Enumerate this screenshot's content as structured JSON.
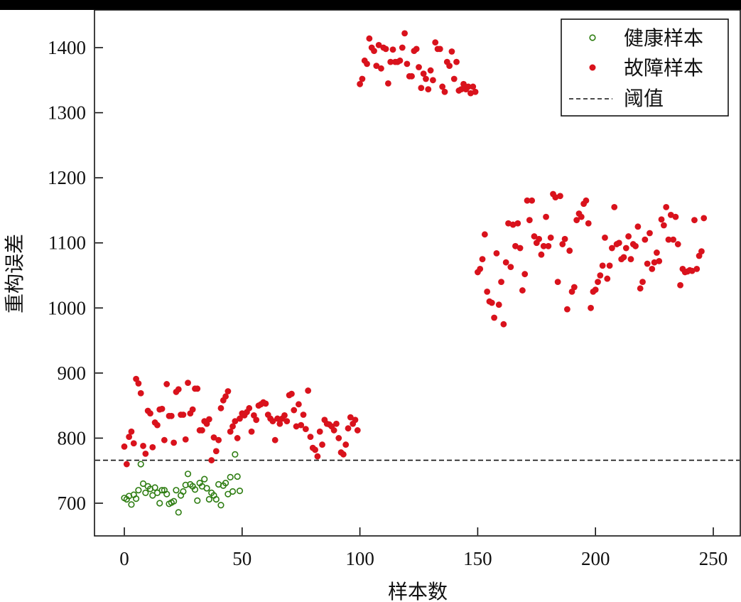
{
  "chart_data": {
    "type": "scatter",
    "title": "",
    "xlabel": "样本数",
    "ylabel": "重构误差",
    "xlim": [
      -12,
      262
    ],
    "ylim": [
      650,
      1450
    ],
    "xticks": [
      0,
      50,
      100,
      150,
      200,
      250
    ],
    "yticks": [
      700,
      800,
      900,
      1000,
      1100,
      1200,
      1300,
      1400
    ],
    "grid": false,
    "legend_position": "upper right",
    "threshold": 766,
    "series": [
      {
        "name": "健康样本",
        "marker": "open-circle",
        "color": "#2e7d12",
        "points": [
          [
            0,
            708
          ],
          [
            1,
            706
          ],
          [
            2,
            711
          ],
          [
            3,
            698
          ],
          [
            4,
            713
          ],
          [
            5,
            707
          ],
          [
            6,
            720
          ],
          [
            7,
            760
          ],
          [
            8,
            730
          ],
          [
            9,
            716
          ],
          [
            10,
            726
          ],
          [
            11,
            722
          ],
          [
            12,
            712
          ],
          [
            13,
            724
          ],
          [
            14,
            716
          ],
          [
            15,
            700
          ],
          [
            16,
            720
          ],
          [
            17,
            720
          ],
          [
            18,
            714
          ],
          [
            19,
            699
          ],
          [
            20,
            701
          ],
          [
            21,
            703
          ],
          [
            22,
            720
          ],
          [
            23,
            686
          ],
          [
            24,
            712
          ],
          [
            25,
            718
          ],
          [
            26,
            728
          ],
          [
            27,
            745
          ],
          [
            28,
            729
          ],
          [
            29,
            726
          ],
          [
            30,
            721
          ],
          [
            31,
            704
          ],
          [
            32,
            731
          ],
          [
            33,
            726
          ],
          [
            34,
            737
          ],
          [
            35,
            723
          ],
          [
            36,
            706
          ],
          [
            37,
            716
          ],
          [
            38,
            712
          ],
          [
            39,
            706
          ],
          [
            40,
            729
          ],
          [
            41,
            697
          ],
          [
            42,
            727
          ],
          [
            43,
            731
          ],
          [
            44,
            714
          ],
          [
            45,
            740
          ],
          [
            46,
            718
          ],
          [
            47,
            775
          ],
          [
            48,
            741
          ],
          [
            49,
            719
          ]
        ]
      },
      {
        "name": "故障样本",
        "marker": "filled-circle",
        "color": "#d9121c",
        "points": [
          [
            0,
            787
          ],
          [
            1,
            760
          ],
          [
            2,
            802
          ],
          [
            3,
            810
          ],
          [
            4,
            792
          ],
          [
            5,
            891
          ],
          [
            6,
            884
          ],
          [
            7,
            869
          ],
          [
            8,
            788
          ],
          [
            9,
            776
          ],
          [
            10,
            842
          ],
          [
            11,
            838
          ],
          [
            12,
            786
          ],
          [
            13,
            824
          ],
          [
            14,
            820
          ],
          [
            15,
            844
          ],
          [
            16,
            845
          ],
          [
            17,
            797
          ],
          [
            18,
            883
          ],
          [
            19,
            834
          ],
          [
            20,
            834
          ],
          [
            21,
            793
          ],
          [
            22,
            871
          ],
          [
            23,
            875
          ],
          [
            24,
            836
          ],
          [
            25,
            836
          ],
          [
            26,
            798
          ],
          [
            27,
            885
          ],
          [
            28,
            838
          ],
          [
            29,
            844
          ],
          [
            30,
            876
          ],
          [
            31,
            876
          ],
          [
            32,
            812
          ],
          [
            33,
            812
          ],
          [
            34,
            826
          ],
          [
            35,
            822
          ],
          [
            36,
            829
          ],
          [
            37,
            766
          ],
          [
            38,
            801
          ],
          [
            39,
            780
          ],
          [
            40,
            797
          ],
          [
            41,
            846
          ],
          [
            42,
            858
          ],
          [
            43,
            864
          ],
          [
            44,
            872
          ],
          [
            45,
            810
          ],
          [
            46,
            818
          ],
          [
            47,
            826
          ],
          [
            48,
            800
          ],
          [
            49,
            830
          ],
          [
            50,
            838
          ],
          [
            51,
            835
          ],
          [
            52,
            840
          ],
          [
            53,
            846
          ],
          [
            54,
            810
          ],
          [
            55,
            835
          ],
          [
            56,
            828
          ],
          [
            57,
            850
          ],
          [
            58,
            852
          ],
          [
            59,
            855
          ],
          [
            60,
            853
          ],
          [
            61,
            836
          ],
          [
            62,
            830
          ],
          [
            63,
            826
          ],
          [
            64,
            797
          ],
          [
            65,
            830
          ],
          [
            66,
            822
          ],
          [
            67,
            830
          ],
          [
            68,
            835
          ],
          [
            69,
            826
          ],
          [
            70,
            866
          ],
          [
            71,
            868
          ],
          [
            72,
            843
          ],
          [
            73,
            818
          ],
          [
            74,
            852
          ],
          [
            75,
            820
          ],
          [
            76,
            836
          ],
          [
            77,
            814
          ],
          [
            78,
            873
          ],
          [
            79,
            802
          ],
          [
            80,
            785
          ],
          [
            81,
            782
          ],
          [
            82,
            772
          ],
          [
            83,
            810
          ],
          [
            84,
            790
          ],
          [
            85,
            828
          ],
          [
            86,
            822
          ],
          [
            87,
            821
          ],
          [
            88,
            818
          ],
          [
            89,
            812
          ],
          [
            90,
            822
          ],
          [
            91,
            800
          ],
          [
            92,
            778
          ],
          [
            93,
            775
          ],
          [
            94,
            790
          ],
          [
            95,
            815
          ],
          [
            96,
            832
          ],
          [
            97,
            822
          ],
          [
            98,
            828
          ],
          [
            99,
            812
          ],
          [
            100,
            1344
          ],
          [
            101,
            1352
          ],
          [
            102,
            1380
          ],
          [
            103,
            1375
          ],
          [
            104,
            1414
          ],
          [
            105,
            1400
          ],
          [
            106,
            1395
          ],
          [
            107,
            1372
          ],
          [
            108,
            1404
          ],
          [
            109,
            1368
          ],
          [
            110,
            1400
          ],
          [
            111,
            1398
          ],
          [
            112,
            1345
          ],
          [
            113,
            1378
          ],
          [
            114,
            1397
          ],
          [
            115,
            1378
          ],
          [
            116,
            1378
          ],
          [
            117,
            1380
          ],
          [
            118,
            1400
          ],
          [
            119,
            1422
          ],
          [
            120,
            1375
          ],
          [
            121,
            1356
          ],
          [
            122,
            1356
          ],
          [
            123,
            1395
          ],
          [
            124,
            1398
          ],
          [
            125,
            1370
          ],
          [
            126,
            1338
          ],
          [
            127,
            1360
          ],
          [
            128,
            1352
          ],
          [
            129,
            1336
          ],
          [
            130,
            1365
          ],
          [
            131,
            1350
          ],
          [
            132,
            1408
          ],
          [
            133,
            1398
          ],
          [
            134,
            1398
          ],
          [
            135,
            1340
          ],
          [
            136,
            1332
          ],
          [
            137,
            1378
          ],
          [
            138,
            1372
          ],
          [
            139,
            1394
          ],
          [
            140,
            1352
          ],
          [
            141,
            1378
          ],
          [
            142,
            1334
          ],
          [
            143,
            1336
          ],
          [
            144,
            1344
          ],
          [
            145,
            1336
          ],
          [
            146,
            1340
          ],
          [
            147,
            1330
          ],
          [
            148,
            1340
          ],
          [
            149,
            1332
          ],
          [
            150,
            1055
          ],
          [
            151,
            1060
          ],
          [
            152,
            1075
          ],
          [
            153,
            1113
          ],
          [
            154,
            1025
          ],
          [
            155,
            1010
          ],
          [
            156,
            1008
          ],
          [
            157,
            985
          ],
          [
            158,
            1084
          ],
          [
            159,
            1005
          ],
          [
            160,
            1040
          ],
          [
            161,
            975
          ],
          [
            162,
            1070
          ],
          [
            163,
            1130
          ],
          [
            164,
            1063
          ],
          [
            165,
            1128
          ],
          [
            166,
            1095
          ],
          [
            167,
            1130
          ],
          [
            168,
            1092
          ],
          [
            169,
            1027
          ],
          [
            170,
            1052
          ],
          [
            171,
            1165
          ],
          [
            172,
            1135
          ],
          [
            173,
            1165
          ],
          [
            174,
            1110
          ],
          [
            175,
            1100
          ],
          [
            176,
            1106
          ],
          [
            177,
            1082
          ],
          [
            178,
            1095
          ],
          [
            179,
            1140
          ],
          [
            180,
            1095
          ],
          [
            181,
            1108
          ],
          [
            182,
            1175
          ],
          [
            183,
            1170
          ],
          [
            184,
            1040
          ],
          [
            185,
            1172
          ],
          [
            186,
            1098
          ],
          [
            187,
            1106
          ],
          [
            188,
            998
          ],
          [
            189,
            1088
          ],
          [
            190,
            1025
          ],
          [
            191,
            1032
          ],
          [
            192,
            1135
          ],
          [
            193,
            1145
          ],
          [
            194,
            1140
          ],
          [
            195,
            1160
          ],
          [
            196,
            1165
          ],
          [
            197,
            1130
          ],
          [
            198,
            1000
          ],
          [
            199,
            1025
          ],
          [
            200,
            1028
          ],
          [
            201,
            1040
          ],
          [
            202,
            1050
          ],
          [
            203,
            1065
          ],
          [
            204,
            1108
          ],
          [
            205,
            1045
          ],
          [
            206,
            1065
          ],
          [
            207,
            1092
          ],
          [
            208,
            1155
          ],
          [
            209,
            1098
          ],
          [
            210,
            1100
          ],
          [
            211,
            1075
          ],
          [
            212,
            1078
          ],
          [
            213,
            1092
          ],
          [
            214,
            1110
          ],
          [
            215,
            1075
          ],
          [
            216,
            1098
          ],
          [
            217,
            1095
          ],
          [
            218,
            1125
          ],
          [
            219,
            1030
          ],
          [
            220,
            1040
          ],
          [
            221,
            1105
          ],
          [
            222,
            1068
          ],
          [
            223,
            1115
          ],
          [
            224,
            1060
          ],
          [
            225,
            1070
          ],
          [
            226,
            1085
          ],
          [
            227,
            1072
          ],
          [
            228,
            1136
          ],
          [
            229,
            1127
          ],
          [
            230,
            1155
          ],
          [
            231,
            1105
          ],
          [
            232,
            1143
          ],
          [
            233,
            1105
          ],
          [
            234,
            1140
          ],
          [
            235,
            1098
          ],
          [
            236,
            1035
          ],
          [
            237,
            1060
          ],
          [
            238,
            1055
          ],
          [
            239,
            1056
          ],
          [
            240,
            1058
          ],
          [
            241,
            1057
          ],
          [
            242,
            1135
          ],
          [
            243,
            1060
          ],
          [
            244,
            1080
          ],
          [
            245,
            1087
          ],
          [
            246,
            1138
          ]
        ]
      },
      {
        "name": "阈值",
        "marker": "dashed-line",
        "color": "#111111",
        "y": 766
      }
    ]
  },
  "figure": {
    "legend": {
      "items": [
        {
          "label": "健康样本",
          "icon": "open-circle-marker",
          "color": "#2e7d12"
        },
        {
          "label": "故障样本",
          "icon": "filled-circle-marker",
          "color": "#d9121c"
        },
        {
          "label": "阈值",
          "icon": "dashed-line-marker",
          "color": "#111111"
        }
      ]
    },
    "axes": {
      "xlabel": "样本数",
      "ylabel": "重构误差",
      "xtick_labels": [
        "0",
        "50",
        "100",
        "150",
        "200",
        "250"
      ],
      "ytick_labels": [
        "700",
        "800",
        "900",
        "1000",
        "1100",
        "1200",
        "1300",
        "1400"
      ]
    }
  }
}
